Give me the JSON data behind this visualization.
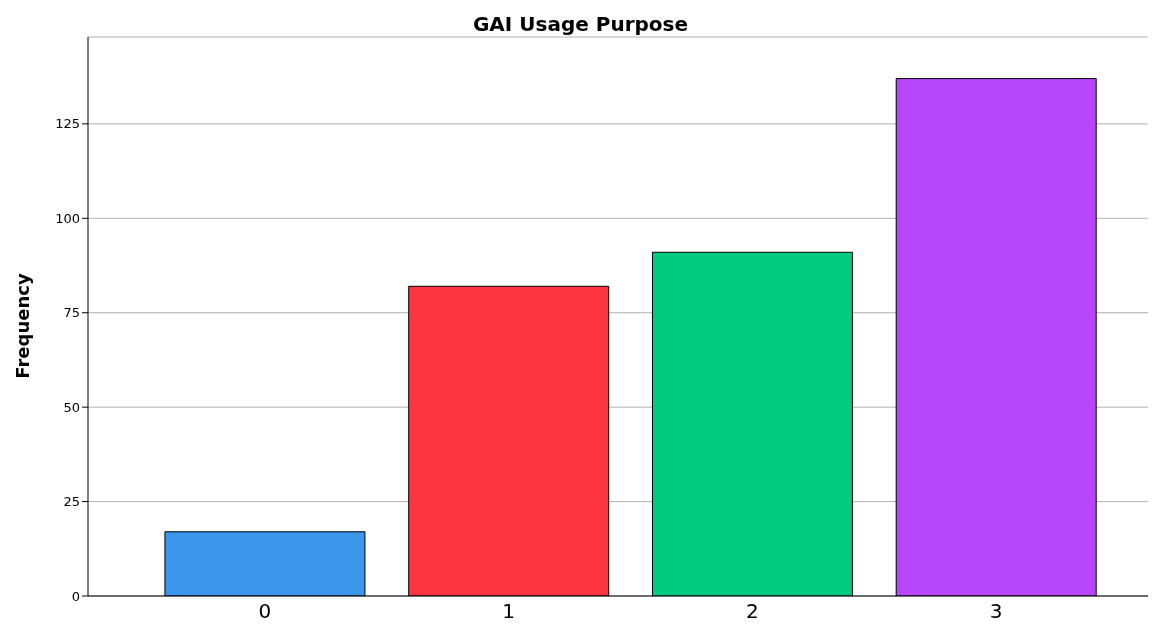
{
  "chart_data": {
    "type": "bar",
    "title": "GAI Usage Purpose",
    "ylabel": "Frequency",
    "categories": [
      "0",
      "1",
      "2",
      "3"
    ],
    "values": [
      17,
      82,
      91,
      137
    ],
    "colors": [
      "#3c96ec",
      "#fe3441",
      "#00cb80",
      "#b746fd"
    ],
    "ylim": [
      0,
      148
    ],
    "yticks": [
      0,
      25,
      50,
      75,
      100,
      125
    ],
    "grid": "y",
    "legend": false
  }
}
